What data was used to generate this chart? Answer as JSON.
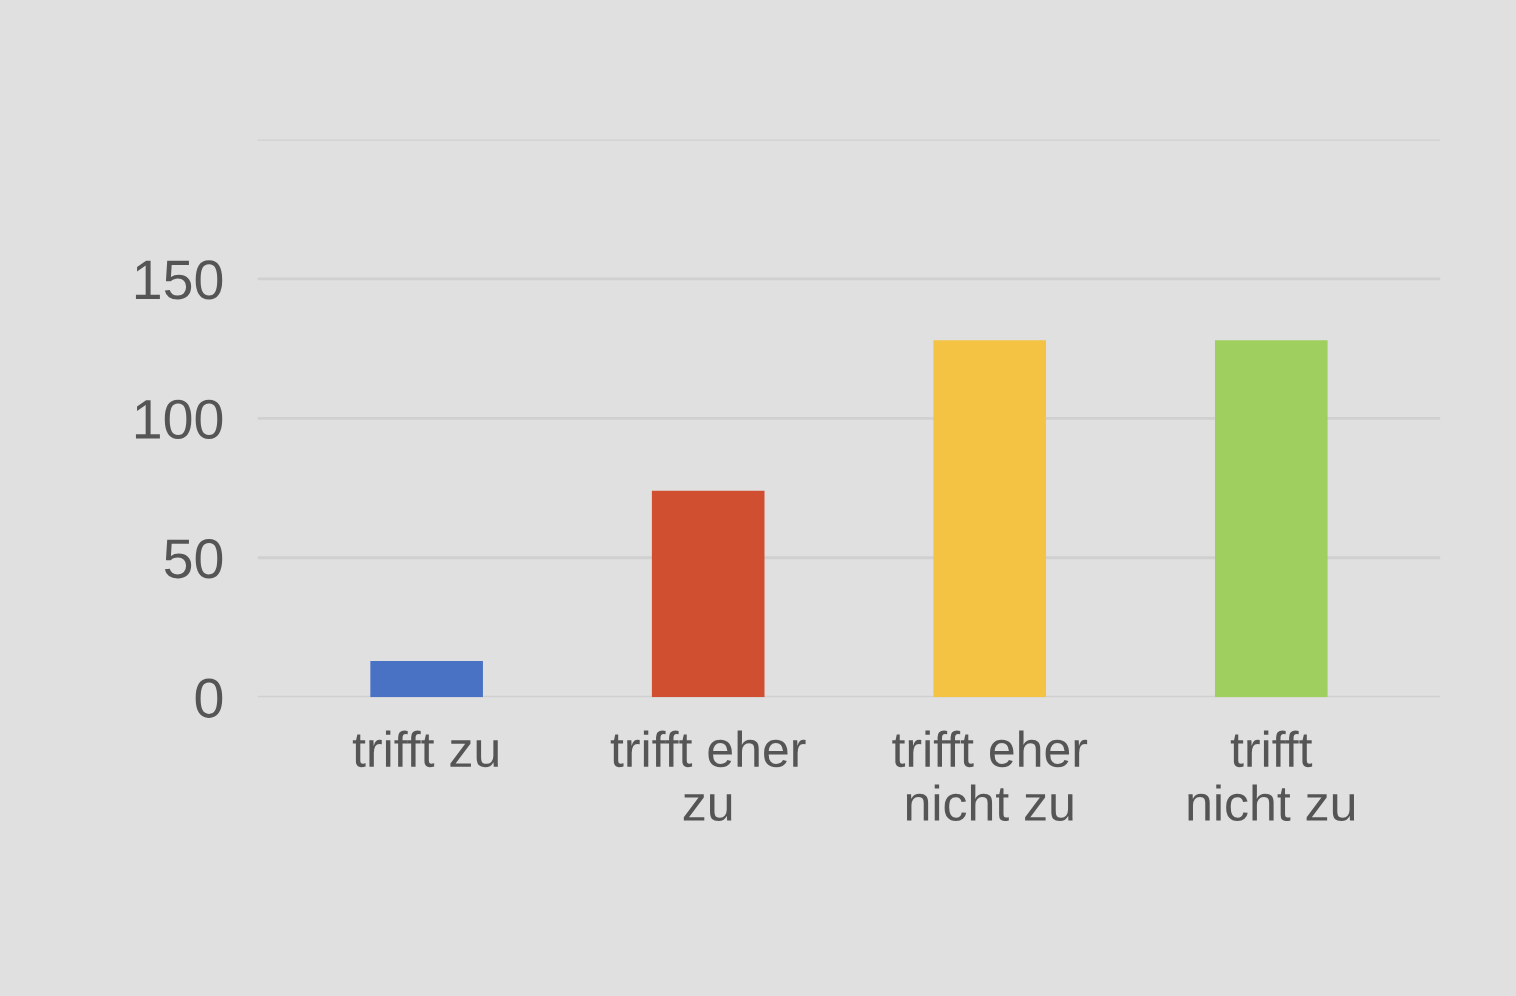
{
  "chart_data": {
    "type": "bar",
    "categories": [
      "trifft zu",
      "trifft eher\nzu",
      "trifft eher\nnicht zu",
      "trifft\nnicht zu"
    ],
    "values": [
      13,
      74,
      128,
      128
    ],
    "colors": [
      "#4a72c4",
      "#d04f31",
      "#f5c343",
      "#9fcf5e"
    ],
    "ylim": [
      0,
      200
    ],
    "yticks": [
      0,
      50,
      100,
      150,
      {
        "value": 200,
        "label": null
      }
    ],
    "grid": "y"
  }
}
